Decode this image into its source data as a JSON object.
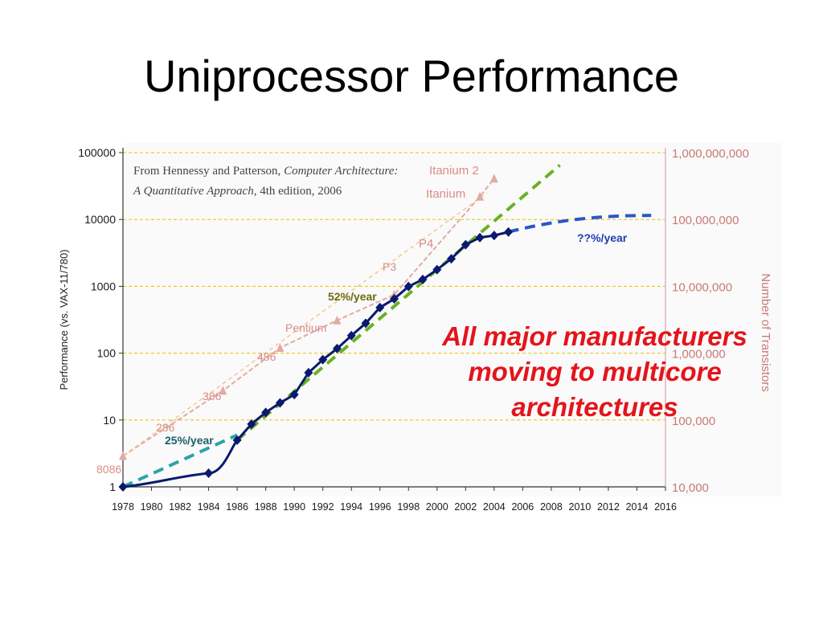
{
  "slide": {
    "title": "Uniprocessor Performance"
  },
  "colors": {
    "perf": "#0a1a6e",
    "transistor": "#e3a9a5",
    "transistor_label": "#d98c86",
    "green_trend": "#6ab023",
    "teal_trend": "#2aa5a6",
    "blue_trend": "#2c56c9",
    "grid": "#e8c200",
    "red_text": "#e4141b",
    "axis_text": "#1a1a1a",
    "right_axis_text": "#c77a75"
  },
  "chart_data": {
    "type": "line",
    "title": "",
    "source_note": [
      "From Hennessy and Patterson, ",
      "Computer Architecture:",
      "A Quantitative Approach",
      ", 4th edition, 2006"
    ],
    "xlabel": "",
    "ylabel": "Performance (vs. VAX-11/780)",
    "y2label": "Number of Transistors",
    "xlim": [
      1978,
      2016
    ],
    "x_ticks": [
      "1978",
      "1980",
      "1982",
      "1984",
      "1986",
      "1988",
      "1990",
      "1992",
      "1994",
      "1996",
      "1998",
      "2000",
      "2002",
      "2004",
      "2006",
      "2008",
      "2010",
      "2012",
      "2014",
      "2016"
    ],
    "y_scale": "log",
    "ylim": [
      1,
      100000
    ],
    "y_ticks": [
      1,
      10,
      100,
      1000,
      10000,
      100000
    ],
    "y_tick_labels": [
      "1",
      "10",
      "100",
      "1000",
      "10000",
      "100000"
    ],
    "y2_scale": "log",
    "y2lim": [
      10000,
      1000000000
    ],
    "y2_tick_labels": [
      "10,000",
      "100,000",
      "1,000,000",
      "10,000,000",
      "100,000,000",
      "1,000,000,000"
    ],
    "grid": "horizontal dashed",
    "series": [
      {
        "kind": "performance",
        "x": [
          1978,
          1984,
          1986,
          1987,
          1988,
          1989,
          1990,
          1991,
          1992,
          1993,
          1994,
          1995,
          1996,
          1997,
          1998,
          1999,
          2000,
          2001,
          2002,
          2003,
          2004,
          2005
        ],
        "y": [
          1,
          1.6,
          5,
          8.7,
          13,
          18,
          24,
          51,
          80,
          117,
          183,
          280,
          481,
          649,
          993,
          1267,
          1779,
          2584,
          4195,
          5364,
          5764,
          6505
        ]
      },
      {
        "kind": "transistors",
        "x": [
          1978,
          1985,
          1989,
          1993,
          1997,
          2003,
          2004
        ],
        "y": [
          29000,
          275000,
          1200000,
          3100000,
          7500000,
          220000000,
          410000000
        ],
        "point_labels": [
          "8086",
          "386",
          "486",
          "Pentium",
          "P3",
          "Itanium",
          "Itanium 2"
        ]
      }
    ],
    "trend_lines": [
      {
        "label": "25%/year",
        "x": [
          1978,
          1986
        ],
        "y": [
          1,
          5.96
        ]
      },
      {
        "label": "52%/year",
        "x": [
          1986,
          2008.6
        ],
        "y": [
          5,
          65000
        ]
      },
      {
        "label": "??%/year",
        "x": [
          2005,
          2015
        ],
        "y": [
          6505,
          11500
        ]
      }
    ],
    "chart_labels": {
      "p4": "P4",
      "trans_286": "286"
    },
    "annotation": [
      "All major manufacturers",
      "moving to multicore",
      "architectures"
    ]
  }
}
